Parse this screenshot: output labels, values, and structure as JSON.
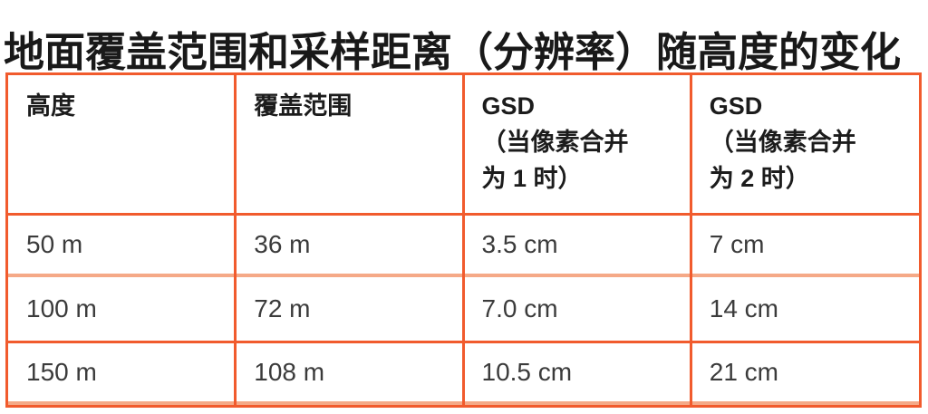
{
  "title": "地面覆盖范围和采样距离（分辨率）随高度的变化",
  "colors": {
    "border_dark": "#F15B2D",
    "border_light": "#F5A987",
    "title_text": "#191919",
    "cell_text": "#3B3B3B"
  },
  "table": {
    "columns": [
      {
        "lines": [
          "高度"
        ]
      },
      {
        "lines": [
          "覆盖范围"
        ]
      },
      {
        "lines": [
          "GSD",
          "（当像素合并",
          "为 1 时）"
        ]
      },
      {
        "lines": [
          "GSD",
          "（当像素合并",
          "为 2 时）"
        ]
      }
    ],
    "rows": [
      [
        "50 m",
        "36 m",
        "3.5 cm",
        "7 cm"
      ],
      [
        "100 m",
        "72 m",
        "7.0 cm",
        "14 cm"
      ],
      [
        "150 m",
        "108 m",
        "10.5 cm",
        "21 cm"
      ]
    ]
  }
}
